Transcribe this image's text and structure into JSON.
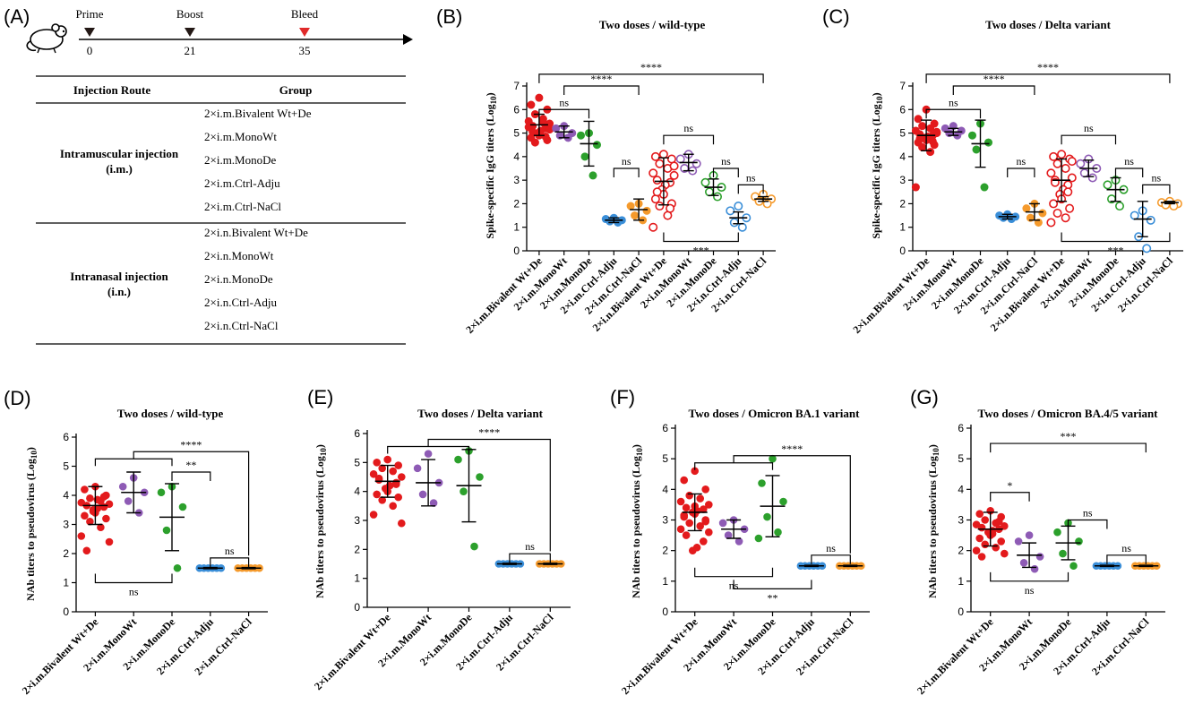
{
  "panel_a": {
    "letter": "(A)",
    "timeline": [
      {
        "label": "Prime",
        "day": "0",
        "color": "#231815"
      },
      {
        "label": "Boost",
        "day": "21",
        "color": "#231815"
      },
      {
        "label": "Bleed",
        "day": "35",
        "color": "#e02a2a"
      }
    ],
    "table": {
      "headers": [
        "Injection Route",
        "Group"
      ],
      "routes": [
        {
          "name": "Intramuscular injection",
          "abbr": "(i.m.)",
          "groups": [
            "2×i.m.Bivalent Wt+De",
            "2×i.m.MonoWt",
            "2×i.m.MonoDe",
            "2×i.m.Ctrl-Adju",
            "2×i.m.Ctrl-NaCl"
          ]
        },
        {
          "name": "Intranasal injection",
          "abbr": "(i.n.)",
          "groups": [
            "2×i.n.Bivalent Wt+De",
            "2×i.n.MonoWt",
            "2×i.n.MonoDe",
            "2×i.n.Ctrl-Adju",
            "2×i.n.Ctrl-NaCl"
          ]
        }
      ]
    }
  },
  "chart_data": [
    {
      "panel": "(B)",
      "type": "scatter",
      "title": "Two doses / wild-type",
      "ylabel": "Spike-specific IgG titers (Log10)",
      "ylim": [
        0,
        7
      ],
      "yticks": [
        0,
        1,
        2,
        3,
        4,
        5,
        6,
        7
      ],
      "categories": [
        "2×i.m.Bivalent Wt+De",
        "2×i.m.MonoWt",
        "2×i.m.MonoDe",
        "2×i.m.Ctrl-Adju",
        "2×i.m.Ctrl-NaCl",
        "2×i.n.Bivalent Wt+De",
        "2×i.n.MonoWt",
        "2×i.n.MonoDe",
        "2×i.n.Ctrl-Adju",
        "2×i.n.Ctrl-NaCl"
      ],
      "colors": [
        "#e31a1c",
        "#8e5bb5",
        "#2ca02c",
        "#3a8ed8",
        "#f59a2c",
        "#e31a1c",
        "#8e5bb5",
        "#2ca02c",
        "#3a8ed8",
        "#f59a2c"
      ],
      "filled": [
        true,
        true,
        true,
        true,
        true,
        false,
        false,
        false,
        false,
        false
      ],
      "means": [
        5.35,
        5.05,
        4.55,
        1.3,
        1.75,
        2.95,
        3.75,
        2.7,
        1.4,
        2.2
      ],
      "sds": [
        0.45,
        0.25,
        0.95,
        0.1,
        0.45,
        1.0,
        0.35,
        0.35,
        0.25,
        0.1
      ],
      "points": [
        [
          6.5,
          6.2,
          6.0,
          5.8,
          5.6,
          5.5,
          5.4,
          5.3,
          5.2,
          5.1,
          5.0,
          4.9,
          4.8,
          4.7,
          4.6,
          5.45,
          5.25,
          5.15,
          5.05,
          4.85
        ],
        [
          5.3,
          5.2,
          5.0,
          4.9,
          4.8
        ],
        [
          5.0,
          4.9,
          4.5,
          4.0,
          3.2
        ],
        [
          1.4,
          1.35,
          1.3,
          1.25,
          1.2
        ],
        [
          2.0,
          1.9,
          1.7,
          1.5,
          1.3
        ],
        [
          4.1,
          4.0,
          3.9,
          3.7,
          3.5,
          3.3,
          3.2,
          3.0,
          2.9,
          2.8,
          2.6,
          2.4,
          2.2,
          2.0,
          1.9,
          1.5,
          1.0,
          3.6,
          2.5,
          1.8
        ],
        [
          4.1,
          3.9,
          3.7,
          3.5,
          3.4
        ],
        [
          3.2,
          2.9,
          2.7,
          2.5,
          2.3
        ],
        [
          1.9,
          1.7,
          1.4,
          1.2,
          1.0
        ],
        [
          2.4,
          2.3,
          2.2,
          2.1,
          2.0
        ]
      ],
      "brackets": [
        {
          "from": 0,
          "to": 2,
          "y": 6.0,
          "dir": "up",
          "label": "ns"
        },
        {
          "from": 0,
          "to": 9,
          "y": 7.5,
          "dir": "up",
          "label": "****",
          "legs": [
            0,
            6
          ]
        },
        {
          "from": 1,
          "to": 4,
          "y": 7.0,
          "dir": "up",
          "label": "****"
        },
        {
          "from": 3,
          "to": 4,
          "y": 3.5,
          "dir": "up",
          "label": "ns"
        },
        {
          "from": 5,
          "to": 7,
          "y": 4.9,
          "dir": "up",
          "label": "ns"
        },
        {
          "from": 7,
          "to": 8,
          "y": 3.5,
          "dir": "up",
          "label": "ns"
        },
        {
          "from": 8,
          "to": 9,
          "y": 2.8,
          "dir": "up",
          "label": "ns"
        },
        {
          "from": 5,
          "to": 8,
          "y": 0.4,
          "dir": "down",
          "label": "***"
        }
      ]
    },
    {
      "panel": "(C)",
      "type": "scatter",
      "title": "Two doses / Delta variant",
      "ylabel": "Spike-specific IgG titers (Log10)",
      "ylim": [
        0,
        7
      ],
      "yticks": [
        0,
        1,
        2,
        3,
        4,
        5,
        6,
        7
      ],
      "categories": [
        "2×i.m.Bivalent Wt+De",
        "2×i.m.MonoWt",
        "2×i.m.MonoDe",
        "2×i.m.Ctrl-Adju",
        "2×i.m.Ctrl-NaCl",
        "2×i.n.Bivalent Wt+De",
        "2×i.n.MonoWt",
        "2×i.n.MonoDe",
        "2×i.n.Ctrl-Adju",
        "2×i.n.Ctrl-NaCl"
      ],
      "colors": [
        "#e31a1c",
        "#8e5bb5",
        "#2ca02c",
        "#3a8ed8",
        "#f59a2c",
        "#e31a1c",
        "#8e5bb5",
        "#2ca02c",
        "#3a8ed8",
        "#f59a2c"
      ],
      "filled": [
        true,
        true,
        true,
        true,
        true,
        false,
        false,
        false,
        false,
        false
      ],
      "means": [
        4.9,
        5.05,
        4.55,
        1.45,
        1.65,
        3.0,
        3.5,
        2.6,
        1.35,
        2.05
      ],
      "sds": [
        0.65,
        0.15,
        1.0,
        0.1,
        0.35,
        0.9,
        0.35,
        0.5,
        0.75,
        0.05
      ],
      "points": [
        [
          6.0,
          5.6,
          5.4,
          5.3,
          5.2,
          5.1,
          5.0,
          4.95,
          4.9,
          4.85,
          4.8,
          4.7,
          4.6,
          4.5,
          4.4,
          4.2,
          2.7,
          5.05,
          4.75,
          4.65
        ],
        [
          5.3,
          5.2,
          5.1,
          5.0,
          4.9
        ],
        [
          5.4,
          4.9,
          4.6,
          4.3,
          2.7
        ],
        [
          1.55,
          1.5,
          1.45,
          1.4,
          1.35
        ],
        [
          2.0,
          1.8,
          1.6,
          1.4,
          1.2
        ],
        [
          4.1,
          4.0,
          3.9,
          3.7,
          3.5,
          3.3,
          3.1,
          3.0,
          2.8,
          2.6,
          2.4,
          2.2,
          2.0,
          1.8,
          1.6,
          1.4,
          1.2,
          3.8,
          2.9,
          2.5
        ],
        [
          3.9,
          3.7,
          3.5,
          3.3,
          3.1
        ],
        [
          3.0,
          2.8,
          2.6,
          2.2,
          1.9
        ],
        [
          1.7,
          1.5,
          1.3,
          0.6,
          0.1
        ],
        [
          2.1,
          2.05,
          2.0,
          1.95,
          1.9
        ]
      ],
      "brackets": [
        {
          "from": 0,
          "to": 2,
          "y": 6.0,
          "dir": "up",
          "label": "ns"
        },
        {
          "from": 0,
          "to": 9,
          "y": 7.5,
          "dir": "up",
          "label": "****",
          "legs": [
            0,
            6
          ]
        },
        {
          "from": 1,
          "to": 4,
          "y": 7.0,
          "dir": "up",
          "label": "****"
        },
        {
          "from": 3,
          "to": 4,
          "y": 3.5,
          "dir": "up",
          "label": "ns"
        },
        {
          "from": 5,
          "to": 7,
          "y": 4.9,
          "dir": "up",
          "label": "ns"
        },
        {
          "from": 7,
          "to": 8,
          "y": 3.5,
          "dir": "up",
          "label": "ns"
        },
        {
          "from": 8,
          "to": 9,
          "y": 2.8,
          "dir": "up",
          "label": "ns"
        },
        {
          "from": 5,
          "to": 9,
          "y": 0.4,
          "dir": "down",
          "label": "***"
        }
      ]
    },
    {
      "panel": "(D)",
      "type": "scatter",
      "title": "Two doses / wild-type",
      "ylabel": "NAb titers to pseudovirus (Log10)",
      "ylim": [
        0,
        6
      ],
      "yticks": [
        0,
        1,
        2,
        3,
        4,
        5,
        6
      ],
      "categories": [
        "2×i.m.Bivalent Wt+De",
        "2×i.m.MonoWt",
        "2×i.m.MonoDe",
        "2×i.m.Ctrl-Adju",
        "2×i.m.Ctrl-NaCl"
      ],
      "colors": [
        "#e31a1c",
        "#8e5bb5",
        "#2ca02c",
        "#3a8ed8",
        "#f59a2c"
      ],
      "filled": [
        true,
        true,
        true,
        true,
        true
      ],
      "means": [
        3.65,
        4.1,
        3.25,
        1.5,
        1.5
      ],
      "sds": [
        0.65,
        0.7,
        1.15,
        0.02,
        0.02
      ],
      "points": [
        [
          4.3,
          4.2,
          4.0,
          3.9,
          3.8,
          3.75,
          3.7,
          3.65,
          3.6,
          3.55,
          3.5,
          3.4,
          3.3,
          3.2,
          3.1,
          2.9,
          2.6,
          2.4,
          2.1,
          3.95,
          3.85,
          3.45
        ],
        [
          4.6,
          4.3,
          4.1,
          3.8,
          3.4
        ],
        [
          4.3,
          4.1,
          3.6,
          2.8,
          1.5
        ],
        [
          1.5,
          1.5,
          1.5,
          1.5,
          1.5,
          1.5
        ],
        [
          1.5,
          1.5,
          1.5,
          1.5,
          1.5,
          1.5
        ]
      ],
      "brackets": [
        {
          "from": 0,
          "to": 4,
          "y": 5.5,
          "dir": "up",
          "label": "****",
          "group_left": [
            0,
            2
          ]
        },
        {
          "from": 2,
          "to": 3,
          "y": 4.8,
          "dir": "up",
          "label": "**"
        },
        {
          "from": 3,
          "to": 4,
          "y": 1.85,
          "dir": "up",
          "label": "ns"
        },
        {
          "from": 0,
          "to": 2,
          "y": 1.0,
          "dir": "down",
          "label": "ns"
        }
      ]
    },
    {
      "panel": "(E)",
      "type": "scatter",
      "title": "Two doses / Delta variant",
      "ylabel": "NAb titers to pseudovirus (Log10)",
      "ylim": [
        0,
        6
      ],
      "yticks": [
        0,
        1,
        2,
        3,
        4,
        5,
        6
      ],
      "categories": [
        "2×i.m.Bivalent Wt+De",
        "2×i.m.MonoWt",
        "2×i.m.MonoDe",
        "2×i.m.Ctrl-Adju",
        "2×i.m.Ctrl-NaCl"
      ],
      "colors": [
        "#e31a1c",
        "#8e5bb5",
        "#2ca02c",
        "#3a8ed8",
        "#f59a2c"
      ],
      "filled": [
        true,
        true,
        true,
        true,
        true
      ],
      "means": [
        4.35,
        4.3,
        4.2,
        1.5,
        1.5
      ],
      "sds": [
        0.55,
        0.8,
        1.25,
        0.02,
        0.02
      ],
      "points": [
        [
          5.1,
          5.0,
          4.9,
          4.8,
          4.7,
          4.6,
          4.5,
          4.4,
          4.3,
          4.2,
          4.1,
          4.0,
          3.9,
          3.8,
          3.7,
          3.5,
          3.2,
          2.9,
          4.45,
          4.25
        ],
        [
          5.3,
          4.8,
          4.3,
          3.9,
          3.6
        ],
        [
          5.4,
          5.1,
          4.5,
          4.0,
          2.1
        ],
        [
          1.5,
          1.5,
          1.5,
          1.5,
          1.5,
          1.5
        ],
        [
          1.5,
          1.5,
          1.5,
          1.5,
          1.5,
          1.5
        ]
      ],
      "brackets": [
        {
          "from": 0,
          "to": 4,
          "y": 5.8,
          "dir": "up",
          "label": "****",
          "group_left": [
            0,
            2
          ]
        },
        {
          "from": 3,
          "to": 4,
          "y": 1.85,
          "dir": "up",
          "label": "ns"
        }
      ]
    },
    {
      "panel": "(F)",
      "type": "scatter",
      "title": "Two doses / Omicron BA.1 variant",
      "ylabel": "NAb titers to pseudovirus (Log10)",
      "ylim": [
        0,
        6
      ],
      "yticks": [
        0,
        1,
        2,
        3,
        4,
        5,
        6
      ],
      "categories": [
        "2×i.m.Bivalent Wt+De",
        "2×i.m.MonoWt",
        "2×i.m.MonoDe",
        "2×i.m.Ctrl-Adju",
        "2×i.m.Ctrl-NaCl"
      ],
      "colors": [
        "#e31a1c",
        "#8e5bb5",
        "#2ca02c",
        "#3a8ed8",
        "#f59a2c"
      ],
      "filled": [
        true,
        true,
        true,
        true,
        true
      ],
      "means": [
        3.25,
        2.7,
        3.45,
        1.5,
        1.5
      ],
      "sds": [
        0.6,
        0.3,
        1.0,
        0.02,
        0.02
      ],
      "points": [
        [
          4.6,
          4.3,
          4.0,
          3.8,
          3.7,
          3.6,
          3.5,
          3.4,
          3.35,
          3.3,
          3.25,
          3.2,
          3.1,
          3.0,
          2.9,
          2.8,
          2.7,
          2.6,
          2.5,
          2.3,
          2.1,
          2.0,
          3.45,
          3.15,
          2.95
        ],
        [
          3.0,
          2.9,
          2.7,
          2.5,
          2.3
        ],
        [
          5.0,
          4.2,
          3.6,
          3.1,
          2.6,
          2.4
        ],
        [
          1.5,
          1.5,
          1.5,
          1.5,
          1.5,
          1.5
        ],
        [
          1.5,
          1.5,
          1.5,
          1.5,
          1.5,
          1.5
        ]
      ],
      "brackets": [
        {
          "from": 0,
          "to": 4,
          "y": 5.1,
          "dir": "up",
          "label": "****",
          "group_left": [
            0,
            2
          ]
        },
        {
          "from": 3,
          "to": 4,
          "y": 1.85,
          "dir": "up",
          "label": "ns"
        },
        {
          "from": 0,
          "to": 2,
          "y": 1.15,
          "dir": "down",
          "label": "ns"
        },
        {
          "from": 1,
          "to": 3,
          "y": 0.75,
          "dir": "down",
          "label": "**"
        }
      ]
    },
    {
      "panel": "(G)",
      "type": "scatter",
      "title": "Two doses / Omicron BA.4/5 variant",
      "ylabel": "NAb titers to pseudovirus (Log10)",
      "ylim": [
        0,
        6
      ],
      "yticks": [
        0,
        1,
        2,
        3,
        4,
        5,
        6
      ],
      "categories": [
        "2×i.m.Bivalent Wt+De",
        "2×i.m.MonoWt",
        "2×i.m.MonoDe",
        "2×i.m.Ctrl-Adju",
        "2×i.m.Ctrl-NaCl"
      ],
      "colors": [
        "#e31a1c",
        "#8e5bb5",
        "#2ca02c",
        "#3a8ed8",
        "#f59a2c"
      ],
      "filled": [
        true,
        true,
        true,
        true,
        true
      ],
      "means": [
        2.7,
        1.85,
        2.25,
        1.5,
        1.5
      ],
      "sds": [
        0.55,
        0.4,
        0.55,
        0.02,
        0.02
      ],
      "points": [
        [
          3.3,
          3.2,
          3.1,
          3.0,
          2.9,
          2.85,
          2.8,
          2.75,
          2.7,
          2.65,
          2.6,
          2.5,
          2.4,
          2.3,
          2.2,
          2.1,
          2.0,
          1.9,
          1.8,
          2.95,
          2.55
        ],
        [
          2.5,
          2.3,
          1.8,
          1.6,
          1.4
        ],
        [
          2.9,
          2.6,
          2.3,
          1.9,
          1.5
        ],
        [
          1.5,
          1.5,
          1.5,
          1.5,
          1.5,
          1.5
        ],
        [
          1.5,
          1.5,
          1.5,
          1.5,
          1.5,
          1.5
        ]
      ],
      "brackets": [
        {
          "from": 0,
          "to": 4,
          "y": 5.5,
          "dir": "up",
          "label": "***"
        },
        {
          "from": 0,
          "to": 1,
          "y": 3.9,
          "dir": "up",
          "label": "*"
        },
        {
          "from": 2,
          "to": 3,
          "y": 3.0,
          "dir": "up",
          "label": "ns"
        },
        {
          "from": 3,
          "to": 4,
          "y": 1.85,
          "dir": "up",
          "label": "ns"
        },
        {
          "from": 0,
          "to": 2,
          "y": 1.0,
          "dir": "down",
          "label": "ns"
        }
      ]
    }
  ]
}
